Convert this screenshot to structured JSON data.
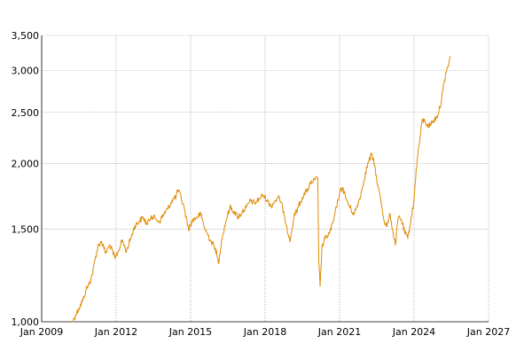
{
  "chart_data": {
    "type": "line",
    "title": "",
    "xlabel": "",
    "ylabel": "",
    "y_scale": "log",
    "grid": true,
    "legend": "none",
    "xlim": [
      "2009-01-01",
      "2027-01-01"
    ],
    "ylim": [
      1000,
      3500
    ],
    "x_ticks": [
      {
        "date": "2009-01-01",
        "label": "Jan 2009"
      },
      {
        "date": "2012-01-01",
        "label": "Jan 2012"
      },
      {
        "date": "2015-01-01",
        "label": "Jan 2015"
      },
      {
        "date": "2018-01-01",
        "label": "Jan 2018"
      },
      {
        "date": "2021-01-01",
        "label": "Jan 2021"
      },
      {
        "date": "2024-01-01",
        "label": "Jan 2024"
      },
      {
        "date": "2027-01-01",
        "label": "Jan 2027"
      }
    ],
    "y_ticks": [
      {
        "value": 1000,
        "label": "1,000"
      },
      {
        "value": 1500,
        "label": "1,500"
      },
      {
        "value": 2000,
        "label": "2,000"
      },
      {
        "value": 2500,
        "label": "2,500"
      },
      {
        "value": 3000,
        "label": "3,000"
      },
      {
        "value": 3500,
        "label": "3,500"
      }
    ],
    "series": [
      {
        "color": "#e08a00",
        "points": [
          [
            "2010-04-01",
            1000
          ],
          [
            "2010-05-15",
            1030
          ],
          [
            "2010-07-01",
            1060
          ],
          [
            "2010-09-01",
            1100
          ],
          [
            "2010-10-15",
            1150
          ],
          [
            "2010-12-01",
            1180
          ],
          [
            "2011-01-15",
            1230
          ],
          [
            "2011-03-01",
            1320
          ],
          [
            "2011-04-15",
            1400
          ],
          [
            "2011-06-01",
            1420
          ],
          [
            "2011-08-01",
            1350
          ],
          [
            "2011-10-01",
            1400
          ],
          [
            "2011-12-15",
            1320
          ],
          [
            "2012-02-01",
            1360
          ],
          [
            "2012-04-01",
            1430
          ],
          [
            "2012-06-01",
            1360
          ],
          [
            "2012-08-01",
            1440
          ],
          [
            "2012-10-01",
            1520
          ],
          [
            "2012-12-01",
            1550
          ],
          [
            "2013-02-01",
            1580
          ],
          [
            "2013-04-01",
            1530
          ],
          [
            "2013-06-01",
            1590
          ],
          [
            "2013-08-01",
            1570
          ],
          [
            "2013-10-01",
            1550
          ],
          [
            "2013-12-01",
            1600
          ],
          [
            "2014-02-01",
            1640
          ],
          [
            "2014-04-01",
            1700
          ],
          [
            "2014-06-01",
            1730
          ],
          [
            "2014-07-01",
            1780
          ],
          [
            "2014-08-15",
            1720
          ],
          [
            "2014-10-01",
            1640
          ],
          [
            "2014-12-01",
            1500
          ],
          [
            "2015-02-01",
            1560
          ],
          [
            "2015-04-01",
            1580
          ],
          [
            "2015-06-01",
            1600
          ],
          [
            "2015-08-01",
            1500
          ],
          [
            "2015-09-15",
            1460
          ],
          [
            "2015-11-01",
            1420
          ],
          [
            "2016-01-01",
            1380
          ],
          [
            "2016-02-15",
            1290
          ],
          [
            "2016-04-01",
            1430
          ],
          [
            "2016-06-01",
            1550
          ],
          [
            "2016-08-01",
            1650
          ],
          [
            "2016-10-01",
            1620
          ],
          [
            "2016-12-01",
            1580
          ],
          [
            "2017-02-01",
            1620
          ],
          [
            "2017-04-01",
            1650
          ],
          [
            "2017-06-01",
            1700
          ],
          [
            "2017-08-01",
            1680
          ],
          [
            "2017-10-01",
            1710
          ],
          [
            "2017-12-01",
            1740
          ],
          [
            "2018-02-01",
            1700
          ],
          [
            "2018-04-01",
            1660
          ],
          [
            "2018-06-01",
            1700
          ],
          [
            "2018-08-01",
            1720
          ],
          [
            "2018-10-01",
            1620
          ],
          [
            "2018-11-15",
            1520
          ],
          [
            "2019-01-01",
            1420
          ],
          [
            "2019-03-01",
            1580
          ],
          [
            "2019-05-01",
            1650
          ],
          [
            "2019-07-01",
            1720
          ],
          [
            "2019-09-01",
            1770
          ],
          [
            "2019-11-01",
            1830
          ],
          [
            "2020-01-01",
            1860
          ],
          [
            "2020-02-15",
            1870
          ],
          [
            "2020-03-01",
            1300
          ],
          [
            "2020-03-20",
            1170
          ],
          [
            "2020-04-15",
            1380
          ],
          [
            "2020-06-01",
            1440
          ],
          [
            "2020-08-01",
            1470
          ],
          [
            "2020-10-01",
            1550
          ],
          [
            "2020-11-15",
            1650
          ],
          [
            "2021-01-01",
            1760
          ],
          [
            "2021-02-15",
            1800
          ],
          [
            "2021-04-01",
            1720
          ],
          [
            "2021-06-01",
            1650
          ],
          [
            "2021-08-01",
            1600
          ],
          [
            "2021-10-01",
            1680
          ],
          [
            "2021-12-01",
            1790
          ],
          [
            "2022-01-15",
            1920
          ],
          [
            "2022-03-01",
            2010
          ],
          [
            "2022-04-15",
            2080
          ],
          [
            "2022-06-01",
            1980
          ],
          [
            "2022-07-15",
            1820
          ],
          [
            "2022-09-01",
            1700
          ],
          [
            "2022-10-15",
            1560
          ],
          [
            "2022-12-01",
            1520
          ],
          [
            "2023-01-15",
            1600
          ],
          [
            "2023-03-01",
            1470
          ],
          [
            "2023-04-01",
            1400
          ],
          [
            "2023-05-15",
            1580
          ],
          [
            "2023-07-01",
            1560
          ],
          [
            "2023-08-15",
            1480
          ],
          [
            "2023-10-01",
            1440
          ],
          [
            "2023-11-15",
            1560
          ],
          [
            "2024-01-01",
            1700
          ],
          [
            "2024-02-01",
            1950
          ],
          [
            "2024-03-01",
            2100
          ],
          [
            "2024-04-01",
            2250
          ],
          [
            "2024-05-01",
            2420
          ],
          [
            "2024-06-15",
            2400
          ],
          [
            "2024-08-01",
            2350
          ],
          [
            "2024-10-01",
            2400
          ],
          [
            "2024-12-01",
            2450
          ],
          [
            "2025-01-15",
            2550
          ],
          [
            "2025-03-01",
            2750
          ],
          [
            "2025-04-15",
            2980
          ],
          [
            "2025-05-15",
            3050
          ],
          [
            "2025-06-15",
            3190
          ]
        ]
      }
    ]
  }
}
